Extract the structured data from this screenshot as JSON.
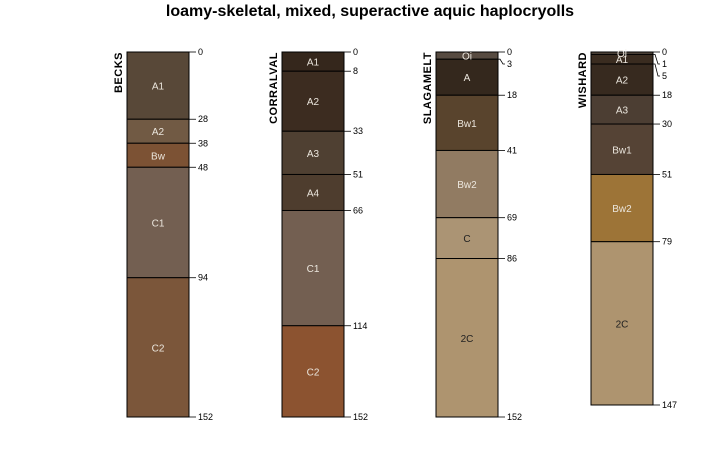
{
  "chart_data": {
    "type": "soil-profile",
    "title": "loamy-skeletal, mixed, superactive aquic haplocryolls",
    "depth_units": "cm",
    "ylim": [
      0,
      152
    ],
    "profiles": [
      {
        "name": "BECKS",
        "horizons": [
          {
            "name": "A1",
            "top": 0,
            "bottom": 28,
            "color": "#584838"
          },
          {
            "name": "A2",
            "top": 28,
            "bottom": 38,
            "color": "#715a44"
          },
          {
            "name": "Bw",
            "top": 38,
            "bottom": 48,
            "color": "#7c5234"
          },
          {
            "name": "C1",
            "top": 48,
            "bottom": 94,
            "color": "#735f51"
          },
          {
            "name": "C2",
            "top": 94,
            "bottom": 152,
            "color": "#7b563a"
          }
        ],
        "depth_ticks": [
          0,
          28,
          38,
          48,
          94,
          152
        ]
      },
      {
        "name": "CORRALVAL",
        "horizons": [
          {
            "name": "A1",
            "top": 0,
            "bottom": 8,
            "color": "#35271c"
          },
          {
            "name": "A2",
            "top": 8,
            "bottom": 33,
            "color": "#3c2c20"
          },
          {
            "name": "A3",
            "top": 33,
            "bottom": 51,
            "color": "#4f4032"
          },
          {
            "name": "A4",
            "top": 51,
            "bottom": 66,
            "color": "#4e3d2e"
          },
          {
            "name": "C1",
            "top": 66,
            "bottom": 114,
            "color": "#735f51"
          },
          {
            "name": "C2",
            "top": 114,
            "bottom": 152,
            "color": "#8c5330"
          }
        ],
        "depth_ticks": [
          0,
          8,
          33,
          51,
          66,
          114,
          152
        ]
      },
      {
        "name": "SLAGAMELT",
        "horizons": [
          {
            "name": "Oi",
            "top": 0,
            "bottom": 3,
            "color": "#574b41"
          },
          {
            "name": "A",
            "top": 3,
            "bottom": 18,
            "color": "#34281d"
          },
          {
            "name": "Bw1",
            "top": 18,
            "bottom": 41,
            "color": "#59442d"
          },
          {
            "name": "Bw2",
            "top": 41,
            "bottom": 69,
            "color": "#917b62"
          },
          {
            "name": "C",
            "top": 69,
            "bottom": 86,
            "color": "#ab9474"
          },
          {
            "name": "2C",
            "top": 86,
            "bottom": 152,
            "color": "#ae946f"
          }
        ],
        "depth_ticks": [
          0,
          3,
          18,
          41,
          69,
          86,
          152
        ]
      },
      {
        "name": "WISHARD",
        "horizons": [
          {
            "name": "Oi",
            "top": 0,
            "bottom": 1,
            "color": "#574b41"
          },
          {
            "name": "A1",
            "top": 1,
            "bottom": 5,
            "color": "#3a2c20"
          },
          {
            "name": "A2",
            "top": 5,
            "bottom": 18,
            "color": "#372a1f"
          },
          {
            "name": "A3",
            "top": 18,
            "bottom": 30,
            "color": "#4c3e33"
          },
          {
            "name": "Bw1",
            "top": 30,
            "bottom": 51,
            "color": "#554335"
          },
          {
            "name": "Bw2",
            "top": 51,
            "bottom": 79,
            "color": "#9d7437"
          },
          {
            "name": "2C",
            "top": 79,
            "bottom": 147,
            "color": "#ae946f"
          }
        ],
        "depth_ticks": [
          0,
          1,
          5,
          18,
          30,
          51,
          79,
          147
        ]
      }
    ]
  }
}
